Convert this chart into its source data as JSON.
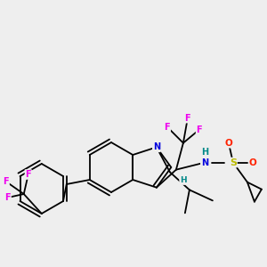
{
  "background_color": "#eeeeee",
  "colors": {
    "C": "#000000",
    "N": "#0000dd",
    "O": "#ff2200",
    "S": "#bbbb00",
    "F": "#ee00ee",
    "H": "#008888"
  },
  "figsize": [
    3.0,
    3.0
  ],
  "dpi": 100
}
